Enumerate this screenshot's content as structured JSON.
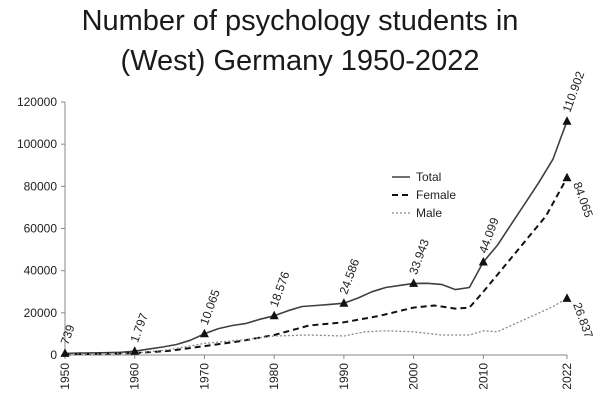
{
  "chart_data": {
    "type": "line",
    "title_lines": [
      "Number of psychology students in",
      "(West) Germany 1950-2022"
    ],
    "ylim": [
      0,
      120000
    ],
    "yticks": [
      "0",
      "20000",
      "40000",
      "60000",
      "80000",
      "100000",
      "120000"
    ],
    "xlim": [
      1950,
      2022
    ],
    "xticks": [
      "1950",
      "1960",
      "1970",
      "1980",
      "1990",
      "2000",
      "2010",
      "2022"
    ],
    "legend": {
      "position": "right-middle",
      "entries": [
        "Total",
        "Female",
        "Male"
      ]
    },
    "series": [
      {
        "name": "Total",
        "style": "solid",
        "color": "#404040",
        "x": [
          1950,
          1952,
          1954,
          1956,
          1958,
          1960,
          1962,
          1964,
          1966,
          1968,
          1970,
          1972,
          1974,
          1976,
          1978,
          1980,
          1982,
          1984,
          1986,
          1988,
          1990,
          1992,
          1994,
          1996,
          1998,
          2000,
          2002,
          2004,
          2006,
          2008,
          2010,
          2012,
          2014,
          2016,
          2018,
          2020,
          2021,
          2022
        ],
        "values": [
          739,
          900,
          1000,
          1100,
          1300,
          1797,
          2800,
          3800,
          5000,
          7000,
          10065,
          12500,
          14000,
          15000,
          17000,
          18576,
          21000,
          23000,
          23500,
          24000,
          24586,
          27000,
          30000,
          32000,
          33000,
          33943,
          34000,
          33500,
          31000,
          32000,
          44099,
          52000,
          62000,
          72000,
          82000,
          93000,
          102000,
          110902
        ]
      },
      {
        "name": "Female",
        "style": "dashed",
        "color": "#111111",
        "x": [
          1950,
          1955,
          1960,
          1965,
          1970,
          1975,
          1980,
          1985,
          1990,
          1995,
          2000,
          2003,
          2006,
          2008,
          2010,
          2013,
          2016,
          2019,
          2022
        ],
        "values": [
          350,
          600,
          900,
          2000,
          4200,
          6500,
          9500,
          14000,
          15500,
          18500,
          22500,
          23500,
          22000,
          22500,
          30000,
          42000,
          54000,
          66000,
          84065
        ]
      },
      {
        "name": "Male",
        "style": "dotted",
        "color": "#888888",
        "x": [
          1950,
          1955,
          1960,
          1965,
          1970,
          1975,
          1980,
          1985,
          1990,
          1993,
          1996,
          2000,
          2004,
          2008,
          2010,
          2012,
          2016,
          2020,
          2022
        ],
        "values": [
          400,
          600,
          900,
          2500,
          5500,
          7000,
          9000,
          9500,
          9000,
          11000,
          11500,
          11000,
          9500,
          9500,
          11500,
          11000,
          17000,
          23000,
          26837
        ]
      }
    ],
    "markers": [
      {
        "series": "Total",
        "x": 1950,
        "value": 739,
        "label": "739"
      },
      {
        "series": "Total",
        "x": 1960,
        "value": 1797,
        "label": "1.797"
      },
      {
        "series": "Total",
        "x": 1970,
        "value": 10065,
        "label": "10.065"
      },
      {
        "series": "Total",
        "x": 1980,
        "value": 18576,
        "label": "18.576"
      },
      {
        "series": "Total",
        "x": 1990,
        "value": 24586,
        "label": "24.586"
      },
      {
        "series": "Total",
        "x": 2000,
        "value": 33943,
        "label": "33.943"
      },
      {
        "series": "Total",
        "x": 2010,
        "value": 44099,
        "label": "44.099"
      },
      {
        "series": "Total",
        "x": 2022,
        "value": 110902,
        "label": "110.902"
      },
      {
        "series": "Female",
        "x": 2022,
        "value": 84065,
        "label": "84.065"
      },
      {
        "series": "Male",
        "x": 2022,
        "value": 26837,
        "label": "26.837"
      }
    ]
  }
}
